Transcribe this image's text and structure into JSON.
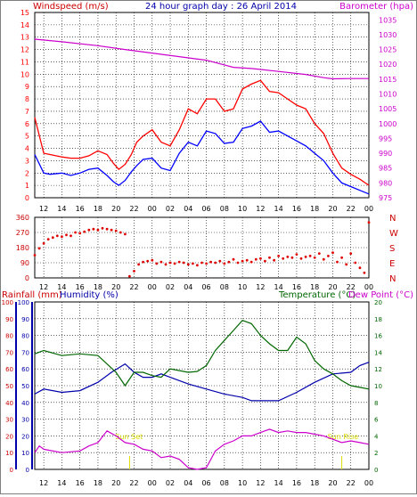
{
  "colors": {
    "wind_avg": "#0000ff",
    "wind_gust": "#ff0000",
    "barometer": "#cc00cc",
    "wind_dir": "#e00000",
    "rainfall": "#cc0000",
    "humidity": "#0000aa",
    "temperature": "#006600",
    "dewpoint": "#cc00cc",
    "title": "#0000aa",
    "dir_labels": "#cc0000",
    "grid": "#000000"
  },
  "headers": {
    "windspeed": "Windspeed (m/s)",
    "title": "24 hour graph day : 26 April 2014",
    "barometer": "Barometer (hpa)",
    "rainfall": "Rainfall (mm)",
    "humidity": "Humidity (%)",
    "temperature": "Temperature (°C)",
    "dewpoint": "Dew Point (°C)"
  },
  "chart_data": [
    {
      "type": "line",
      "panel": "wind_barometer",
      "title": "24 hour graph day : 26 April 2014",
      "x_ticks": [
        "12",
        "14",
        "16",
        "18",
        "20",
        "22",
        "00",
        "02",
        "04",
        "06",
        "08",
        "10",
        "12",
        "14",
        "16",
        "18",
        "20",
        "22",
        "00"
      ],
      "left_axis": {
        "label": "Windspeed (m/s)",
        "ticks": [
          0,
          1,
          2,
          3,
          4,
          5,
          6,
          7,
          8,
          9,
          10,
          11,
          12,
          13,
          14,
          15
        ],
        "ylim": [
          0,
          15
        ]
      },
      "right_axis": {
        "label": "Barometer (hpa)",
        "ticks": [
          975,
          980,
          985,
          990,
          995,
          1000,
          1005,
          1010,
          1015,
          1020,
          1025,
          1030,
          1035
        ],
        "ylim": [
          975,
          1037.5
        ]
      },
      "series": [
        {
          "name": "Windspeed (m/s)",
          "key": "gust",
          "axis": "left",
          "hours": [
            11,
            12,
            12.7,
            14,
            15,
            16,
            17,
            18,
            19,
            19.7,
            20.3,
            21,
            21.7,
            22.3,
            23,
            24,
            25,
            26,
            27,
            28,
            29,
            30,
            31,
            32,
            33,
            34,
            35,
            36,
            37,
            38,
            39,
            40,
            41,
            42,
            43,
            44,
            45,
            46,
            47,
            48
          ],
          "values": [
            6.5,
            3.6,
            3.5,
            3.3,
            3.2,
            3.2,
            3.4,
            3.8,
            3.5,
            2.8,
            2.3,
            2.7,
            3.5,
            4.5,
            5.0,
            5.5,
            4.5,
            4.2,
            5.5,
            7.2,
            6.8,
            8.0,
            8.0,
            7.0,
            7.2,
            8.8,
            9.2,
            9.5,
            8.6,
            8.5,
            8.0,
            7.5,
            7.2,
            6.0,
            5.2,
            3.6,
            2.4,
            1.9,
            1.5,
            1.0
          ]
        },
        {
          "name": "Windspeed (m/s)",
          "key": "avg",
          "axis": "left",
          "hours": [
            11,
            12,
            12.7,
            14,
            15,
            16,
            17,
            18,
            19,
            19.7,
            20.3,
            21,
            21.7,
            22.3,
            23,
            24,
            25,
            26,
            27,
            28,
            29,
            30,
            31,
            32,
            33,
            34,
            35,
            36,
            37,
            38,
            39,
            40,
            41,
            42,
            43,
            44,
            45,
            46,
            47,
            48
          ],
          "values": [
            3.5,
            2.0,
            1.9,
            2.0,
            1.8,
            2.0,
            2.3,
            2.4,
            1.8,
            1.3,
            1.0,
            1.4,
            2.1,
            2.6,
            3.1,
            3.2,
            2.4,
            2.2,
            3.6,
            4.5,
            4.2,
            5.4,
            5.2,
            4.4,
            4.5,
            5.6,
            5.8,
            6.2,
            5.3,
            5.4,
            5.0,
            4.6,
            4.2,
            3.6,
            3.0,
            2.0,
            1.2,
            0.9,
            0.6,
            0.3
          ]
        },
        {
          "name": "Barometer (hpa)",
          "key": "baro",
          "axis": "right",
          "hours": [
            11,
            14,
            18,
            21,
            24,
            27,
            30,
            33,
            35,
            38,
            41,
            43,
            44,
            46,
            48
          ],
          "values": [
            1028.5,
            1027.6,
            1026.3,
            1025.0,
            1023.8,
            1022.6,
            1021.4,
            1019.0,
            1018.6,
            1017.6,
            1016.6,
            1015.5,
            1015.1,
            1015.2,
            1015.2
          ]
        }
      ]
    },
    {
      "type": "scatter",
      "panel": "wind_direction",
      "x_ticks": [
        "12",
        "14",
        "16",
        "18",
        "20",
        "22",
        "00",
        "02",
        "04",
        "06",
        "08",
        "10",
        "12",
        "14",
        "16",
        "18",
        "20",
        "22",
        "00"
      ],
      "left_axis": {
        "ticks": [
          360,
          270,
          180,
          90,
          0
        ],
        "ylim": [
          0,
          360
        ]
      },
      "right_axis": {
        "ticks": [
          "N",
          "W",
          "S",
          "E",
          "N"
        ]
      },
      "series": [
        {
          "name": "",
          "key": "dir",
          "hours": [
            11,
            11.5,
            12,
            12.5,
            13,
            13.5,
            14,
            14.5,
            15,
            15.5,
            16,
            16.5,
            17,
            17.5,
            18,
            18.5,
            19,
            19.5,
            20,
            20.5,
            21,
            21.5,
            22,
            22.5,
            23,
            23.5,
            24,
            24.5,
            25,
            25.5,
            26,
            26.5,
            27,
            27.5,
            28,
            28.5,
            29,
            29.5,
            30,
            30.5,
            31,
            31.5,
            32,
            32.5,
            33,
            33.5,
            34,
            34.5,
            35,
            35.5,
            36,
            36.5,
            37,
            37.5,
            38,
            38.5,
            39,
            39.5,
            40,
            40.5,
            41,
            41.5,
            42,
            42.5,
            43,
            43.5,
            44,
            44.5,
            45,
            45.5,
            46,
            46.5,
            47,
            47.5,
            48
          ],
          "values": [
            135,
            175,
            205,
            230,
            240,
            250,
            245,
            255,
            250,
            270,
            265,
            275,
            285,
            290,
            285,
            295,
            290,
            285,
            280,
            270,
            260,
            10,
            40,
            80,
            95,
            100,
            105,
            85,
            95,
            80,
            90,
            85,
            95,
            90,
            80,
            85,
            75,
            90,
            85,
            95,
            90,
            100,
            85,
            95,
            110,
            90,
            100,
            105,
            95,
            110,
            115,
            100,
            120,
            105,
            130,
            115,
            125,
            120,
            140,
            115,
            125,
            130,
            120,
            145,
            110,
            130,
            150,
            95,
            120,
            80,
            145,
            90,
            60,
            30,
            330
          ]
        }
      ]
    },
    {
      "type": "line",
      "panel": "rain_humidity_temperature",
      "x_ticks": [
        "12",
        "14",
        "16",
        "18",
        "20",
        "22",
        "00",
        "02",
        "04",
        "06",
        "08",
        "10",
        "12",
        "14",
        "16",
        "18",
        "20",
        "22",
        "00"
      ],
      "left_axis": {
        "label": "Rainfall (mm)",
        "ticks": [
          0,
          10,
          20,
          30,
          40,
          50,
          60,
          70,
          80,
          90,
          100
        ],
        "ylim": [
          0,
          100
        ]
      },
      "left_axis2": {
        "label": "Humidity (%)",
        "ticks": [
          0,
          10,
          20,
          30,
          40,
          50,
          60,
          70,
          80,
          90,
          100
        ],
        "ylim": [
          0,
          100
        ]
      },
      "right_axis": {
        "label": "Temperature (°C)",
        "ticks": [
          0,
          2,
          4,
          6,
          8,
          10,
          12,
          14,
          16,
          18,
          20
        ],
        "ylim": [
          0,
          20
        ]
      },
      "right_axis_label2": "Dew Point (°C)",
      "annotations": [
        "Sun Rise",
        "Sun Set"
      ],
      "series": [
        {
          "name": "Humidity (%)",
          "key": "hum",
          "axis": "left",
          "hours": [
            11,
            12,
            14,
            16,
            18,
            19.5,
            21,
            22,
            23,
            24,
            25,
            26,
            28,
            30,
            32,
            34,
            35,
            36,
            38,
            40,
            42,
            44,
            46,
            47,
            48
          ],
          "values": [
            45,
            48,
            46,
            47,
            52,
            58,
            63,
            58,
            55,
            55,
            57,
            55,
            51,
            48,
            45,
            43,
            41,
            41,
            41,
            46,
            52,
            57,
            58,
            62,
            64
          ]
        },
        {
          "name": "Temperature (°C)",
          "key": "temp",
          "axis": "right",
          "hours": [
            11,
            12,
            14,
            16,
            18,
            20,
            21,
            22,
            23,
            24,
            25,
            26,
            28,
            29,
            30,
            31,
            32,
            33,
            34,
            35,
            36,
            37,
            38,
            39,
            40,
            41,
            42,
            43,
            44,
            45,
            46,
            47,
            48
          ],
          "values": [
            13.8,
            14.2,
            13.6,
            13.8,
            13.6,
            11.6,
            10.0,
            11.6,
            11.6,
            11.2,
            11.0,
            12.0,
            11.6,
            11.7,
            12.4,
            14.2,
            15.4,
            16.6,
            17.8,
            17.4,
            16.0,
            15.0,
            14.2,
            14.2,
            15.8,
            15.0,
            13.0,
            12.0,
            11.4,
            10.6,
            10.0,
            9.8,
            9.6
          ]
        },
        {
          "name": "Dew Point (°C)",
          "key": "dew",
          "axis": "right",
          "hours": [
            11,
            11.5,
            12,
            14,
            16,
            17,
            18,
            19,
            20,
            21,
            22,
            23,
            24,
            25,
            26,
            27,
            28,
            29,
            30,
            31,
            32,
            33,
            34,
            35,
            36,
            37,
            38,
            39,
            40,
            41,
            42,
            43,
            44,
            45,
            46,
            47,
            48
          ],
          "values": [
            2.0,
            2.8,
            2.4,
            2.0,
            2.2,
            2.8,
            3.2,
            4.6,
            4.0,
            3.2,
            3.0,
            2.4,
            2.2,
            1.4,
            1.6,
            1.2,
            0.2,
            0.0,
            0.2,
            2.2,
            3.0,
            3.4,
            4.0,
            4.0,
            4.4,
            4.8,
            4.4,
            4.6,
            4.4,
            4.4,
            4.2,
            4.0,
            3.6,
            3.2,
            3.4,
            3.2,
            3.0
          ]
        }
      ]
    }
  ]
}
